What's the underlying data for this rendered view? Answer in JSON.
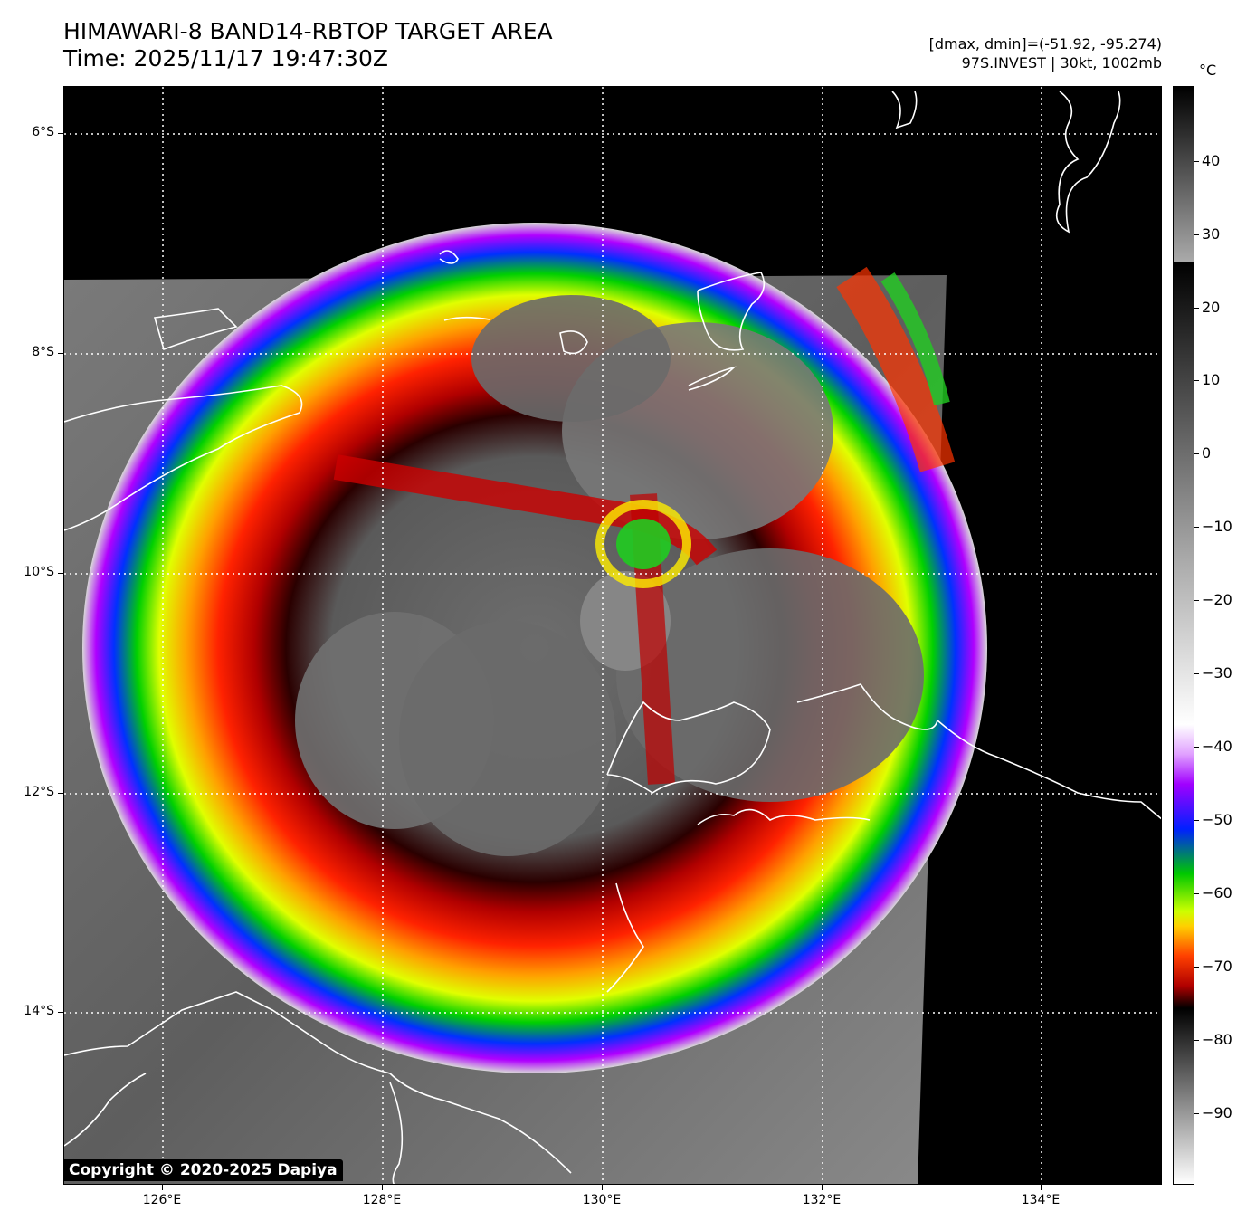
{
  "header": {
    "title_line1": "HIMAWARI-8 BAND14-RBTOP TARGET AREA",
    "title_line2": "Time: 2025/11/17 19:47:30Z",
    "info_line1": "[dmax, dmin]=(-51.92, -95.274)",
    "info_line2": "97S.INVEST | 30kt, 1002mb"
  },
  "map": {
    "lat_labels": [
      "6°S",
      "8°S",
      "10°S",
      "12°S",
      "14°S"
    ],
    "lon_labels": [
      "126°E",
      "128°E",
      "130°E",
      "132°E",
      "134°E"
    ],
    "background_color": "#000000",
    "coastline_color": "#ffffff",
    "gridline_style": "dotted white"
  },
  "colorbar": {
    "unit": "°C",
    "tick_labels": [
      "40",
      "30",
      "20",
      "10",
      "0",
      "−10",
      "−20",
      "−30",
      "−40",
      "−50",
      "−60",
      "−70",
      "−80",
      "−90"
    ],
    "range": [
      -100,
      50
    ]
  },
  "footer": {
    "copyright": "Copyright © 2020-2025 Dapiya"
  }
}
